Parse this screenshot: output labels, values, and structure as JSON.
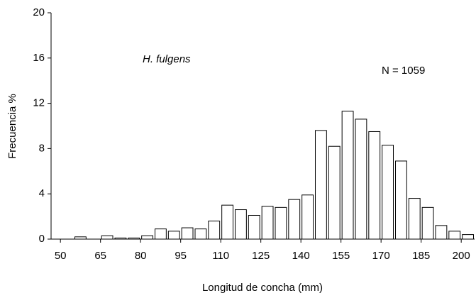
{
  "chart_data": {
    "type": "histogram",
    "x_label": "Longitud de concha  (mm)",
    "y_label": "Frecuencia  %",
    "annotations": [
      "H. fulgens",
      "N = 1059"
    ],
    "bins": [
      55,
      60,
      65,
      70,
      75,
      80,
      85,
      90,
      95,
      100,
      105,
      110,
      115,
      120,
      125,
      130,
      135,
      140,
      145,
      150,
      155,
      160,
      165,
      170,
      175,
      180,
      185,
      190,
      195,
      200,
      205
    ],
    "values": [
      0.2,
      0,
      0.3,
      0.1,
      0.1,
      0.3,
      0.9,
      0.7,
      1.0,
      0.9,
      1.6,
      3.0,
      2.6,
      2.1,
      2.9,
      2.8,
      3.5,
      3.9,
      9.6,
      8.2,
      11.3,
      10.6,
      9.5,
      8.3,
      6.9,
      3.6,
      2.8,
      1.2,
      0.7,
      0.4
    ],
    "color": "#ffffff",
    "xlim": [
      46.5,
      205
    ],
    "xticks": [
      50,
      65,
      80,
      95,
      110,
      125,
      140,
      155,
      170,
      185,
      200
    ],
    "ylim": [
      0,
      20
    ],
    "yticks": [
      0,
      4,
      8,
      12,
      16,
      20
    ]
  }
}
